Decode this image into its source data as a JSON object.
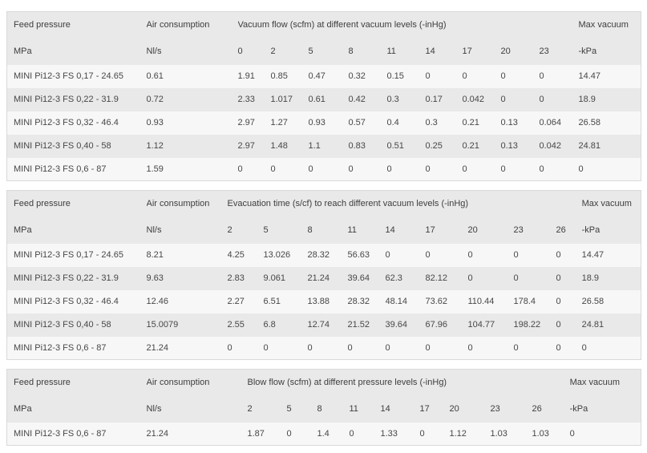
{
  "colors": {
    "border": "#d9d9d9",
    "header_bg": "#e9e9e9",
    "row_bg": "#f7f7f7",
    "row_alt_bg": "#e9e9e9",
    "header_text": "#3d3d3d",
    "body_text": "#474747",
    "page_bg": "#ffffff"
  },
  "tables": [
    {
      "id": "vacuum-flow",
      "feed_pressure_label": "Feed pressure",
      "air_consumption_label": "Air consumption",
      "group_label": "Vacuum flow (scfm) at different vacuum levels (-inHg)",
      "max_vacuum_label": "Max vacuum",
      "feed_pressure_unit": "MPa",
      "air_consumption_unit": "Nl/s",
      "max_vacuum_unit": "-kPa",
      "levels": [
        "0",
        "2",
        "5",
        "8",
        "11",
        "14",
        "17",
        "20",
        "23"
      ],
      "rows": [
        {
          "model": "MINI Pi12-3 FS 0,17 - 24.65",
          "air": "0.61",
          "values": [
            "1.91",
            "0.85",
            "0.47",
            "0.32",
            "0.15",
            "0",
            "0",
            "0",
            "0"
          ],
          "max": "14.47"
        },
        {
          "model": "MINI Pi12-3 FS 0,22 - 31.9",
          "air": "0.72",
          "values": [
            "2.33",
            "1.017",
            "0.61",
            "0.42",
            "0.3",
            "0.17",
            "0.042",
            "0",
            "0"
          ],
          "max": "18.9"
        },
        {
          "model": "MINI Pi12-3 FS 0,32 - 46.4",
          "air": "0.93",
          "values": [
            "2.97",
            "1.27",
            "0.93",
            "0.57",
            "0.4",
            "0.3",
            "0.21",
            "0.13",
            "0.064"
          ],
          "max": "26.58"
        },
        {
          "model": "MINI Pi12-3 FS 0,40 - 58",
          "air": "1.12",
          "values": [
            "2.97",
            "1.48",
            "1.1",
            "0.83",
            "0.51",
            "0.25",
            "0.21",
            "0.13",
            "0.042"
          ],
          "max": "24.81"
        },
        {
          "model": "MINI Pi12-3 FS 0,6 - 87",
          "air": "1.59",
          "values": [
            "0",
            "0",
            "0",
            "0",
            "0",
            "0",
            "0",
            "0",
            "0"
          ],
          "max": "0"
        }
      ]
    },
    {
      "id": "evacuation-time",
      "feed_pressure_label": "Feed pressure",
      "air_consumption_label": "Air consumption",
      "group_label": "Evacuation time (s/cf) to reach different vacuum levels (-inHg)",
      "max_vacuum_label": "Max vacuum",
      "feed_pressure_unit": "MPa",
      "air_consumption_unit": "Nl/s",
      "max_vacuum_unit": "-kPa",
      "levels": [
        "2",
        "5",
        "8",
        "11",
        "14",
        "17",
        "20",
        "23",
        "26"
      ],
      "rows": [
        {
          "model": "MINI Pi12-3 FS 0,17 - 24.65",
          "air": "8.21",
          "values": [
            "4.25",
            "13.026",
            "28.32",
            "56.63",
            "0",
            "0",
            "0",
            "0",
            "0"
          ],
          "max": "14.47"
        },
        {
          "model": "MINI Pi12-3 FS 0,22 - 31.9",
          "air": "9.63",
          "values": [
            "2.83",
            "9.061",
            "21.24",
            "39.64",
            "62.3",
            "82.12",
            "0",
            "0",
            "0"
          ],
          "max": "18.9"
        },
        {
          "model": "MINI Pi12-3 FS 0,32 - 46.4",
          "air": "12.46",
          "values": [
            "2.27",
            "6.51",
            "13.88",
            "28.32",
            "48.14",
            "73.62",
            "110.44",
            "178.4",
            "0"
          ],
          "max": "26.58"
        },
        {
          "model": "MINI Pi12-3 FS 0,40 - 58",
          "air": "15.0079",
          "values": [
            "2.55",
            "6.8",
            "12.74",
            "21.52",
            "39.64",
            "67.96",
            "104.77",
            "198.22",
            "0"
          ],
          "max": "24.81"
        },
        {
          "model": "MINI Pi12-3 FS 0,6 - 87",
          "air": "21.24",
          "values": [
            "0",
            "0",
            "0",
            "0",
            "0",
            "0",
            "0",
            "0",
            "0"
          ],
          "max": "0"
        }
      ]
    },
    {
      "id": "blow-flow",
      "feed_pressure_label": "Feed pressure",
      "air_consumption_label": "Air consumption",
      "group_label": "Blow flow (scfm) at different pressure levels (-inHg)",
      "max_vacuum_label": "Max vacuum",
      "feed_pressure_unit": "MPa",
      "air_consumption_unit": "Nl/s",
      "max_vacuum_unit": "-kPa",
      "levels": [
        "2",
        "5",
        "8",
        "11",
        "14",
        "17",
        "20",
        "23",
        "26"
      ],
      "rows": [
        {
          "model": "MINI Pi12-3 FS 0,6 - 87",
          "air": "21.24",
          "values": [
            "1.87",
            "0",
            "1.4",
            "0",
            "1.33",
            "0",
            "1.12",
            "1.03",
            "1.03"
          ],
          "max": "0"
        }
      ]
    }
  ]
}
